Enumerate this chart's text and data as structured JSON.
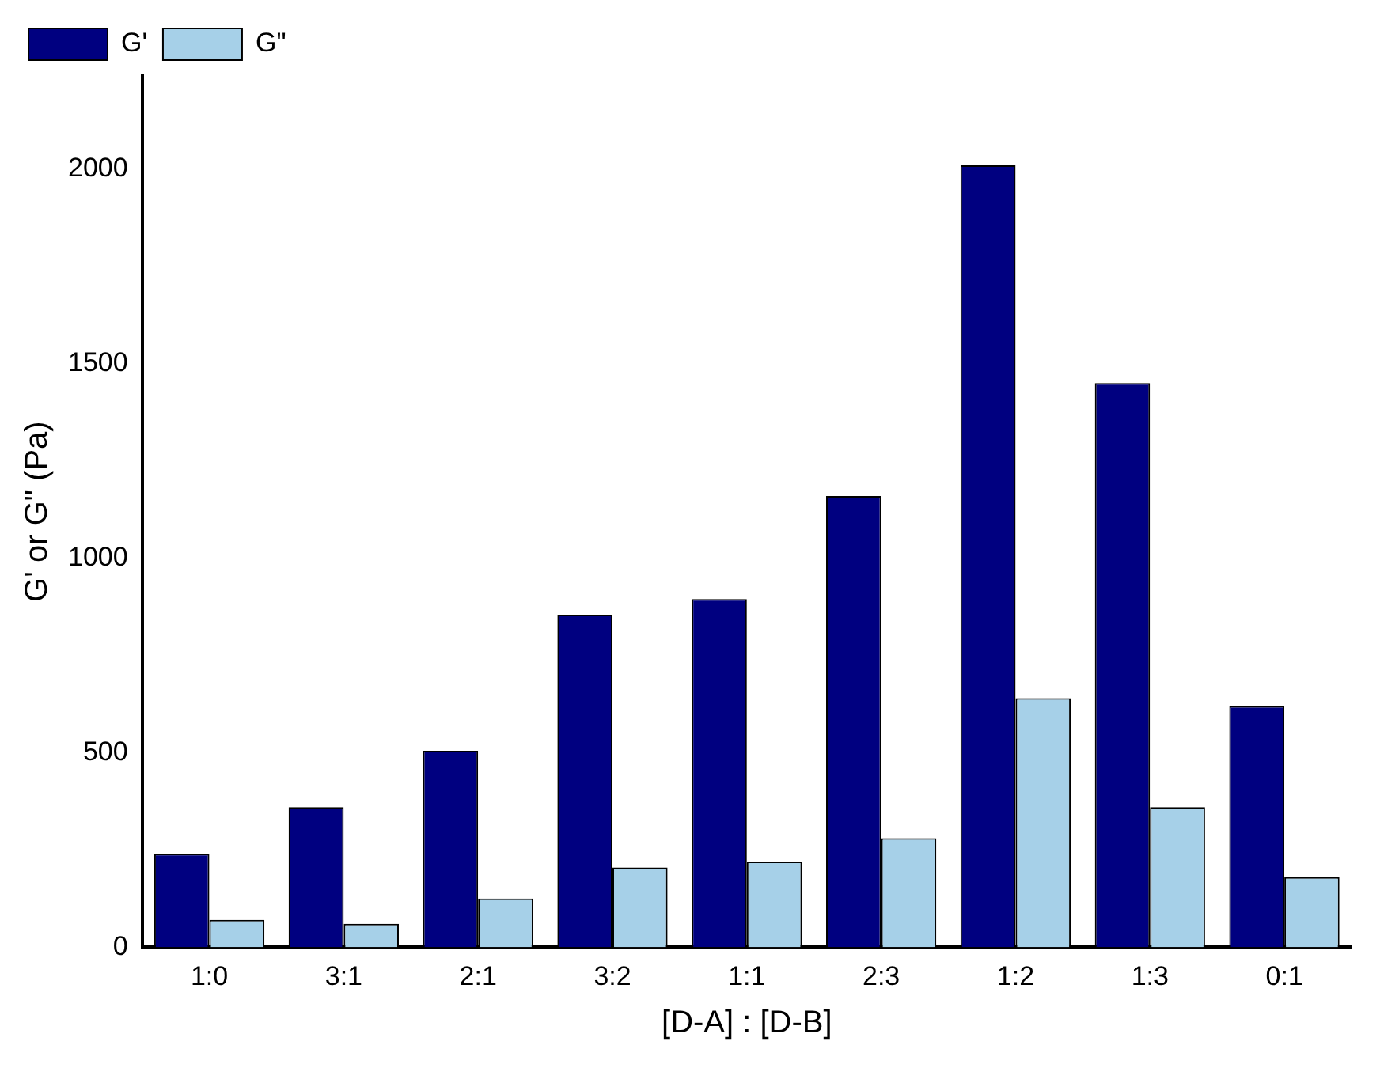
{
  "chart_data": {
    "type": "bar",
    "xlabel": "[D-A] : [D-B]",
    "ylabel": "G' or G\" (Pa)",
    "categories": [
      "1:0",
      "3:1",
      "2:1",
      "3:2",
      "1:1",
      "2:3",
      "1:2",
      "1:3",
      "0:1"
    ],
    "series": [
      {
        "name": "G'",
        "color": "#000080",
        "values": [
          240,
          360,
          505,
          855,
          895,
          1160,
          2010,
          1450,
          620
        ]
      },
      {
        "name": "G\"",
        "color": "#a6d0e8",
        "values": [
          70,
          60,
          125,
          205,
          220,
          280,
          640,
          360,
          180
        ]
      }
    ],
    "ylim": [
      0,
      2240
    ],
    "yticks": [
      0,
      500,
      1000,
      1500,
      2000
    ],
    "grid": false,
    "legend": "top left"
  }
}
